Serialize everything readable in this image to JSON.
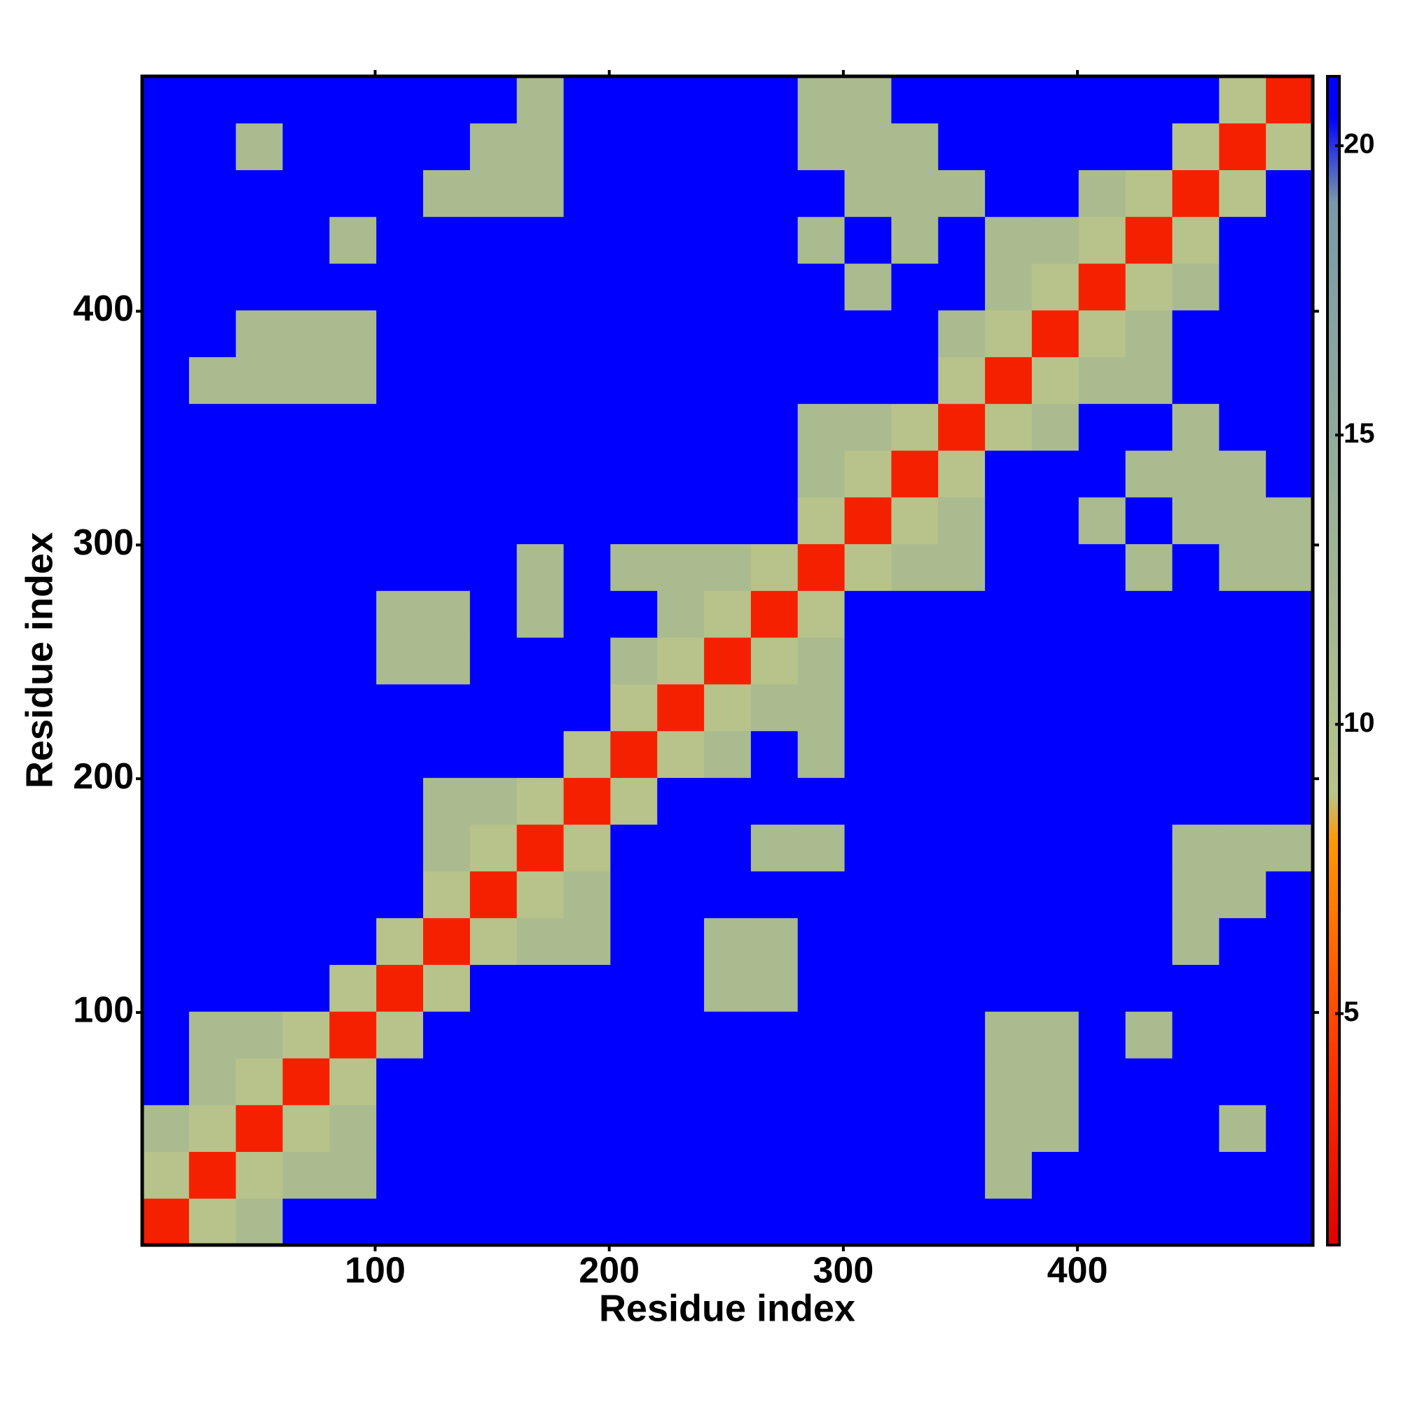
{
  "chart_data": {
    "type": "heatmap",
    "xlabel": "Residue index",
    "ylabel": "Residue index",
    "xlim": [
      0.5,
      500.5
    ],
    "ylim": [
      0.5,
      500.5
    ],
    "xticks": [
      100,
      200,
      300,
      400
    ],
    "yticks": [
      100,
      200,
      300,
      400
    ],
    "clim": [
      1,
      21.2
    ],
    "cticks": [
      5,
      10,
      15,
      20
    ],
    "colorscale": [
      [
        1,
        "#e00000"
      ],
      [
        4,
        "#ff3000"
      ],
      [
        8,
        "#ff9900"
      ],
      [
        8.8,
        "#b8c48a"
      ],
      [
        19,
        "#7a9aa8"
      ],
      [
        20.5,
        "#0000ff"
      ]
    ],
    "values": [
      [
        3,
        9,
        11,
        21,
        21,
        21,
        21,
        21,
        21,
        21,
        21,
        21,
        21,
        21,
        21,
        21,
        21,
        21,
        21,
        21,
        21,
        21,
        21,
        21,
        21
      ],
      [
        9,
        3,
        9,
        11,
        11,
        21,
        21,
        21,
        21,
        21,
        21,
        21,
        21,
        21,
        21,
        21,
        21,
        21,
        11,
        21,
        21,
        21,
        21,
        21,
        21
      ],
      [
        11,
        9,
        3,
        9,
        11,
        21,
        21,
        21,
        21,
        21,
        21,
        21,
        21,
        21,
        21,
        21,
        21,
        21,
        11,
        11,
        21,
        21,
        21,
        11,
        21
      ],
      [
        21,
        11,
        9,
        3,
        9,
        21,
        21,
        21,
        21,
        21,
        21,
        21,
        21,
        21,
        21,
        21,
        21,
        21,
        11,
        11,
        21,
        21,
        21,
        21,
        21
      ],
      [
        21,
        11,
        11,
        9,
        3,
        9,
        21,
        21,
        21,
        21,
        21,
        21,
        21,
        21,
        21,
        21,
        21,
        21,
        11,
        11,
        21,
        11,
        21,
        21,
        21
      ],
      [
        21,
        21,
        21,
        21,
        9,
        3,
        9,
        21,
        21,
        21,
        21,
        21,
        11,
        11,
        21,
        21,
        21,
        21,
        21,
        21,
        21,
        21,
        21,
        21,
        21
      ],
      [
        21,
        21,
        21,
        21,
        21,
        9,
        3,
        9,
        11,
        11,
        21,
        21,
        11,
        11,
        21,
        21,
        21,
        21,
        21,
        21,
        21,
        21,
        11,
        21,
        21
      ],
      [
        21,
        21,
        21,
        21,
        21,
        21,
        9,
        3,
        9,
        11,
        21,
        21,
        21,
        21,
        21,
        21,
        21,
        21,
        21,
        21,
        21,
        21,
        11,
        11,
        21
      ],
      [
        21,
        21,
        21,
        21,
        21,
        21,
        11,
        9,
        3,
        9,
        21,
        21,
        21,
        11,
        11,
        21,
        21,
        21,
        21,
        21,
        21,
        21,
        11,
        11,
        11
      ],
      [
        21,
        21,
        21,
        21,
        21,
        21,
        11,
        11,
        9,
        3,
        9,
        21,
        21,
        21,
        21,
        21,
        21,
        21,
        21,
        21,
        21,
        21,
        21,
        21,
        21
      ],
      [
        21,
        21,
        21,
        21,
        21,
        21,
        21,
        21,
        21,
        9,
        3,
        9,
        11,
        21,
        11,
        21,
        21,
        21,
        21,
        21,
        21,
        21,
        21,
        21,
        21
      ],
      [
        21,
        21,
        21,
        21,
        21,
        21,
        21,
        21,
        21,
        21,
        9,
        3,
        9,
        11,
        11,
        21,
        21,
        21,
        21,
        21,
        21,
        21,
        21,
        21,
        21
      ],
      [
        21,
        21,
        21,
        21,
        21,
        11,
        11,
        21,
        21,
        21,
        11,
        9,
        3,
        9,
        11,
        21,
        21,
        21,
        21,
        21,
        21,
        21,
        21,
        21,
        21
      ],
      [
        21,
        21,
        21,
        21,
        21,
        11,
        11,
        21,
        11,
        21,
        21,
        11,
        9,
        3,
        9,
        21,
        21,
        21,
        21,
        21,
        21,
        21,
        21,
        21,
        21
      ],
      [
        21,
        21,
        21,
        21,
        21,
        21,
        21,
        21,
        11,
        21,
        11,
        11,
        11,
        9,
        3,
        9,
        11,
        11,
        21,
        21,
        21,
        11,
        21,
        11,
        11
      ],
      [
        21,
        21,
        21,
        21,
        21,
        21,
        21,
        21,
        21,
        21,
        21,
        21,
        21,
        21,
        9,
        3,
        9,
        11,
        21,
        21,
        11,
        21,
        11,
        11,
        11
      ],
      [
        21,
        21,
        21,
        21,
        21,
        21,
        21,
        21,
        21,
        21,
        21,
        21,
        21,
        21,
        11,
        9,
        3,
        9,
        21,
        21,
        21,
        11,
        11,
        11,
        21
      ],
      [
        21,
        21,
        21,
        21,
        21,
        21,
        21,
        21,
        21,
        21,
        21,
        21,
        21,
        21,
        11,
        11,
        9,
        3,
        9,
        11,
        21,
        21,
        11,
        21,
        21
      ],
      [
        21,
        11,
        11,
        11,
        11,
        21,
        21,
        21,
        21,
        21,
        21,
        21,
        21,
        21,
        21,
        21,
        21,
        9,
        3,
        9,
        11,
        11,
        21,
        21,
        21
      ],
      [
        21,
        21,
        11,
        11,
        11,
        21,
        21,
        21,
        21,
        21,
        21,
        21,
        21,
        21,
        21,
        21,
        21,
        11,
        9,
        3,
        9,
        11,
        21,
        21,
        21
      ],
      [
        21,
        21,
        21,
        21,
        21,
        21,
        21,
        21,
        21,
        21,
        21,
        21,
        21,
        21,
        21,
        11,
        21,
        21,
        11,
        9,
        3,
        9,
        11,
        21,
        21
      ],
      [
        21,
        21,
        21,
        21,
        11,
        21,
        21,
        21,
        21,
        21,
        21,
        21,
        21,
        21,
        11,
        21,
        11,
        21,
        11,
        11,
        9,
        3,
        9,
        21,
        21
      ],
      [
        21,
        21,
        21,
        21,
        21,
        21,
        11,
        11,
        11,
        21,
        21,
        21,
        21,
        21,
        21,
        11,
        11,
        11,
        21,
        21,
        11,
        9,
        3,
        9,
        21
      ],
      [
        21,
        21,
        11,
        21,
        21,
        21,
        21,
        11,
        11,
        21,
        21,
        21,
        21,
        21,
        11,
        11,
        11,
        21,
        21,
        21,
        21,
        21,
        9,
        3,
        9
      ],
      [
        21,
        21,
        21,
        21,
        21,
        21,
        21,
        21,
        11,
        21,
        21,
        21,
        21,
        21,
        11,
        11,
        21,
        21,
        21,
        21,
        21,
        21,
        21,
        9,
        3
      ]
    ]
  }
}
